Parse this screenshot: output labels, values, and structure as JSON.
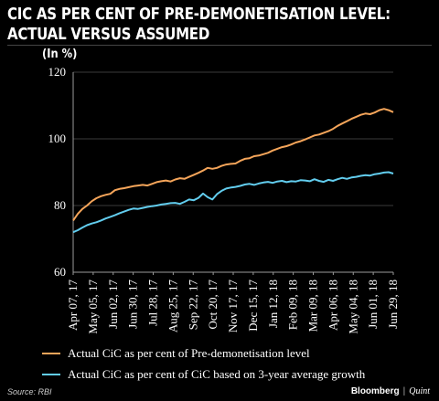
{
  "header": {
    "title_line1": "CIC AS PER CENT OF PRE-DEMONETISATION LEVEL:",
    "title_line2": "ACTUAL VERSUS ASSUMED",
    "unit_label": "(In %)"
  },
  "chart_data": {
    "type": "line",
    "title": "CIC AS PER CENT OF PRE-DEMONETISATION LEVEL: ACTUAL VERSUS ASSUMED",
    "ylabel": "(In %)",
    "xlabel": "",
    "ylim": [
      60,
      120
    ],
    "yticks": [
      60,
      80,
      100,
      120
    ],
    "x_tick_labels": [
      "Apr 07, 17",
      "May 05, 17",
      "Jun 02, 17",
      "Jun 30, 17",
      "Jul 28, 17",
      "Aug 25, 17",
      "Sep 22, 17",
      "Oct 20, 17",
      "Nov 17, 17",
      "Dec 15, 17",
      "Jan 12, 18",
      "Feb 09, 18",
      "Mar 09, 18",
      "Apr 06, 18",
      "May 04, 18",
      "Jun 01, 18",
      "Jun 29, 18"
    ],
    "grid": true,
    "legend_placement": "bottom",
    "series": [
      {
        "name": "Actual CiC as per cent of Pre-demonetisation level",
        "color": "#f5a55a",
        "values": [
          75.5,
          77.5,
          79.0,
          80.0,
          81.3,
          82.2,
          82.8,
          83.2,
          83.5,
          84.6,
          85.0,
          85.2,
          85.5,
          85.8,
          86.0,
          86.2,
          86.0,
          86.5,
          87.0,
          87.3,
          87.5,
          87.2,
          87.8,
          88.2,
          88.0,
          88.6,
          89.2,
          89.8,
          90.5,
          91.3,
          91.0,
          91.3,
          91.9,
          92.3,
          92.5,
          92.6,
          93.4,
          94.0,
          94.2,
          94.8,
          95.0,
          95.4,
          95.8,
          96.5,
          97.0,
          97.5,
          97.8,
          98.3,
          98.9,
          99.3,
          99.8,
          100.4,
          101.0,
          101.3,
          101.8,
          102.3,
          103.0,
          103.9,
          104.6,
          105.3,
          106.0,
          106.6,
          107.2,
          107.6,
          107.4,
          107.9,
          108.6,
          109.0,
          108.6,
          108.0
        ]
      },
      {
        "name": "Actual CiC as per cent of CiC based on 3-year average growth",
        "color": "#62cdee",
        "values": [
          72.0,
          72.6,
          73.4,
          74.1,
          74.6,
          75.0,
          75.5,
          76.1,
          76.6,
          77.1,
          77.7,
          78.2,
          78.7,
          79.1,
          79.0,
          79.3,
          79.6,
          79.8,
          80.0,
          80.3,
          80.5,
          80.7,
          80.8,
          80.5,
          81.1,
          81.8,
          81.6,
          82.3,
          83.6,
          82.5,
          81.8,
          83.4,
          84.4,
          85.1,
          85.4,
          85.6,
          85.9,
          86.3,
          86.5,
          86.2,
          86.6,
          86.9,
          87.1,
          86.8,
          87.2,
          87.4,
          87.0,
          87.3,
          87.2,
          87.6,
          87.5,
          87.3,
          87.9,
          87.4,
          87.1,
          87.7,
          87.4,
          87.9,
          88.3,
          88.0,
          88.4,
          88.6,
          88.9,
          89.1,
          89.0,
          89.4,
          89.6,
          89.9,
          90.0,
          89.6
        ]
      }
    ]
  },
  "legend": {
    "items": [
      {
        "label": "Actual CiC as per cent of Pre-demonetisation level",
        "color": "#f5a55a"
      },
      {
        "label": "Actual CiC as per cent of CiC based on 3-year average growth",
        "color": "#62cdee"
      }
    ]
  },
  "footer": {
    "source": "Source: RBI",
    "brand_primary": "Bloomberg",
    "brand_separator": "|",
    "brand_secondary": "Quint"
  }
}
